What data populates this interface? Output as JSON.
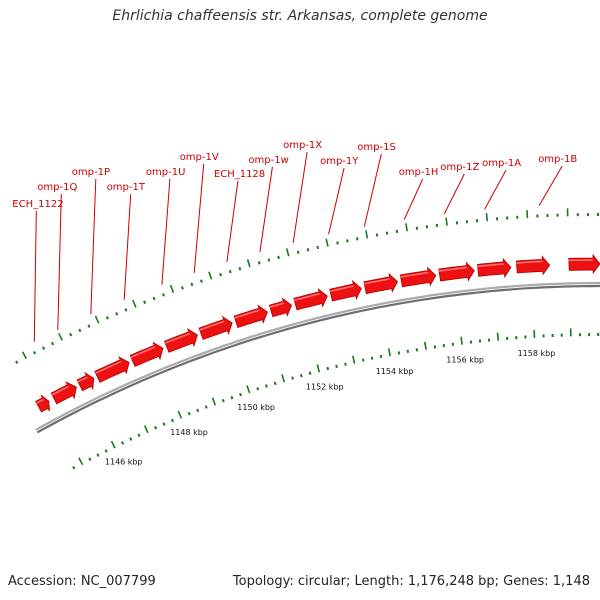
{
  "title": "Ehrlichia chaffeensis str. Arkansas, complete genome",
  "footer": {
    "accession": "Accession: NC_007799",
    "stats": "Topology: circular; Length: 1,176,248 bp; Genes: 1,148"
  },
  "colors": {
    "gene": "#ee1111",
    "gene_dark": "#b00000",
    "label": "#cc0000",
    "leader": "#cc0000",
    "tick": "#1a7a1a",
    "backbone": "#888888"
  },
  "genome_view": {
    "start_kbp": 1144.65,
    "end_kbp": 1159.8,
    "genes": [
      {
        "start": 1144.7,
        "end": 1145.0
      },
      {
        "start": 1145.15,
        "end": 1145.8
      },
      {
        "start": 1145.9,
        "end": 1146.3
      },
      {
        "start": 1146.4,
        "end": 1147.3
      },
      {
        "start": 1147.4,
        "end": 1148.25
      },
      {
        "start": 1148.35,
        "end": 1149.2
      },
      {
        "start": 1149.3,
        "end": 1150.15
      },
      {
        "start": 1150.25,
        "end": 1151.1
      },
      {
        "start": 1151.2,
        "end": 1151.75
      },
      {
        "start": 1151.85,
        "end": 1152.7
      },
      {
        "start": 1152.8,
        "end": 1153.6
      },
      {
        "start": 1153.7,
        "end": 1154.55
      },
      {
        "start": 1154.65,
        "end": 1155.55
      },
      {
        "start": 1155.65,
        "end": 1156.55
      },
      {
        "start": 1156.65,
        "end": 1157.5
      },
      {
        "start": 1157.65,
        "end": 1158.5
      },
      {
        "start": 1159.0,
        "end": 1159.8
      }
    ],
    "gene_labels": [
      {
        "text": "ECH_1122",
        "pos": 1145.3
      },
      {
        "text": "omp-1Q",
        "pos": 1145.95
      },
      {
        "text": "omp-1P",
        "pos": 1146.85
      },
      {
        "text": "omp-1T",
        "pos": 1147.75
      },
      {
        "text": "omp-1U",
        "pos": 1148.75
      },
      {
        "text": "omp-1V",
        "pos": 1149.6
      },
      {
        "text": "ECH_1128",
        "pos": 1150.45
      },
      {
        "text": "omp-1w",
        "pos": 1151.3
      },
      {
        "text": "omp-1X",
        "pos": 1152.15
      },
      {
        "text": "omp-1Y",
        "pos": 1153.05
      },
      {
        "text": "omp-1S",
        "pos": 1153.95
      },
      {
        "text": "omp-1H",
        "pos": 1154.95
      },
      {
        "text": "omp-1Z",
        "pos": 1155.95
      },
      {
        "text": "omp-1A",
        "pos": 1156.95
      },
      {
        "text": "omp-1B",
        "pos": 1158.3
      }
    ],
    "scale_labels": [
      "1146 kbp",
      "1148 kbp",
      "1150 kbp",
      "1152 kbp",
      "1154 kbp",
      "1156 kbp",
      "1158 kbp"
    ],
    "scale_label_kbp": [
      1146,
      1148,
      1150,
      1152,
      1154,
      1156,
      1158
    ]
  }
}
